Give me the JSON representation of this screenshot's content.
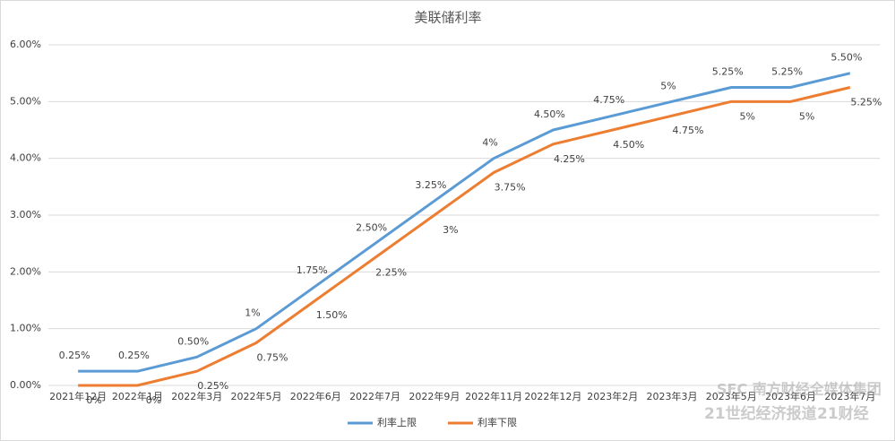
{
  "chart_data": {
    "type": "line",
    "title": "美联储利率",
    "categories": [
      "2021年12月",
      "2022年1月",
      "2022年3月",
      "2022年5月",
      "2022年6月",
      "2022年7月",
      "2022年9月",
      "2022年11月",
      "2022年12月",
      "2023年2月",
      "2023年3月",
      "2023年5月",
      "2023年6月",
      "2023年7月"
    ],
    "series": [
      {
        "name": "利率上限",
        "color": "#5b9bd5",
        "values": [
          0.25,
          0.25,
          0.5,
          1,
          1.75,
          2.5,
          3.25,
          4,
          4.5,
          4.75,
          5,
          5.25,
          5.25,
          5.5
        ],
        "value_labels": [
          "0.25%",
          "0.25%",
          "0.50%",
          "1%",
          "1.75%",
          "2.50%",
          "3.25%",
          "4%",
          "4.50%",
          "4.75%",
          "5%",
          "5.25%",
          "5.25%",
          "5.50%"
        ]
      },
      {
        "name": "利率下限",
        "color": "#ed7d31",
        "values": [
          0,
          0,
          0.25,
          0.75,
          1.5,
          2.25,
          3,
          3.75,
          4.25,
          4.5,
          4.75,
          5,
          5,
          5.25
        ],
        "value_labels": [
          "0%",
          "0%",
          "0.25%",
          "0.75%",
          "1.50%",
          "2.25%",
          "3%",
          "3.75%",
          "4.25%",
          "4.50%",
          "4.75%",
          "5%",
          "5%",
          "5.25%"
        ]
      }
    ],
    "ylim": [
      0,
      6
    ],
    "yticks": [
      {
        "value": 0,
        "label": "0.00%"
      },
      {
        "value": 1,
        "label": "1.00%"
      },
      {
        "value": 2,
        "label": "2.00%"
      },
      {
        "value": 3,
        "label": "3.00%"
      },
      {
        "value": 4,
        "label": "4.00%"
      },
      {
        "value": 5,
        "label": "5.00%"
      },
      {
        "value": 6,
        "label": "6.00%"
      }
    ],
    "grid": true,
    "legend": "bottom",
    "watermark": [
      "SFC 南方财经全媒体集团",
      "21世纪经济报道",
      "21财经"
    ]
  }
}
